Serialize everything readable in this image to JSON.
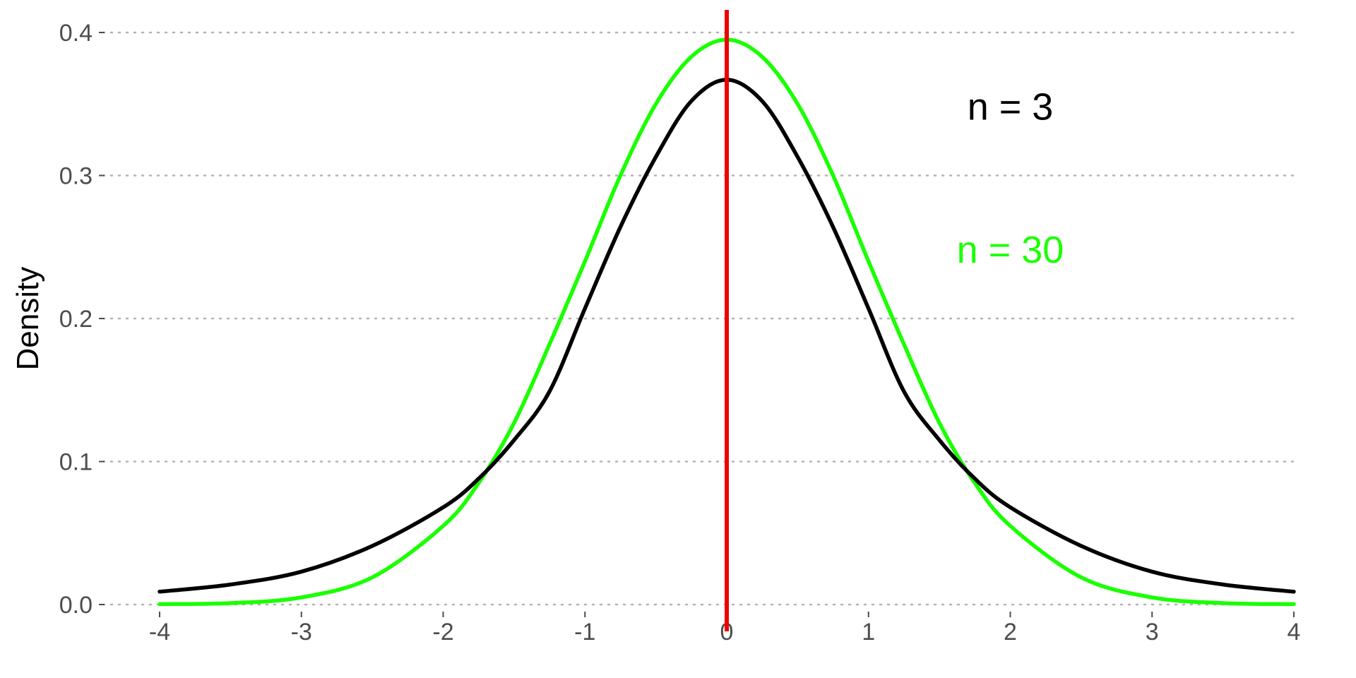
{
  "chart_data": {
    "type": "line",
    "title": "",
    "xlabel": "",
    "ylabel": "Density",
    "xlim": [
      -4,
      4
    ],
    "ylim": [
      0,
      0.4
    ],
    "x_ticks": [
      -4,
      -3,
      -2,
      -1,
      0,
      1,
      2,
      3,
      4
    ],
    "y_ticks": [
      {
        "value": 0.0,
        "label": "0.0"
      },
      {
        "value": 0.1,
        "label": "0.1"
      },
      {
        "value": 0.2,
        "label": "0.2"
      },
      {
        "value": 0.3,
        "label": "0.3"
      },
      {
        "value": 0.4,
        "label": "0.4"
      }
    ],
    "grid": "horizontal-dotted",
    "x": [
      -4,
      -3.5,
      -3,
      -2.5,
      -2,
      -1.75,
      -1.5,
      -1.25,
      -1,
      -0.75,
      -0.5,
      -0.25,
      0,
      0.25,
      0.5,
      0.75,
      1,
      1.25,
      1.5,
      1.75,
      2,
      2.5,
      3,
      3.5,
      4
    ],
    "series": [
      {
        "color": "#000000",
        "values": [
          0.009,
          0.014,
          0.023,
          0.041,
          0.068,
          0.088,
          0.115,
          0.149,
          0.207,
          0.264,
          0.313,
          0.352,
          0.367,
          0.352,
          0.313,
          0.264,
          0.207,
          0.149,
          0.115,
          0.088,
          0.068,
          0.041,
          0.023,
          0.014,
          0.009
        ]
      },
      {
        "color": "#1aff00",
        "values": [
          0.0003,
          0.001,
          0.005,
          0.019,
          0.055,
          0.085,
          0.127,
          0.182,
          0.24,
          0.3,
          0.35,
          0.383,
          0.395,
          0.383,
          0.35,
          0.3,
          0.24,
          0.182,
          0.127,
          0.085,
          0.055,
          0.019,
          0.005,
          0.001,
          0.0003
        ]
      }
    ],
    "reference_line": {
      "x": 0,
      "color": "#ee0000"
    },
    "annotations": [
      {
        "text": "n = 3",
        "x": 2.0,
        "y": 0.348,
        "color": "#000000"
      },
      {
        "text": "n = 30",
        "x": 2.0,
        "y": 0.248,
        "color": "#1aff00"
      }
    ]
  }
}
